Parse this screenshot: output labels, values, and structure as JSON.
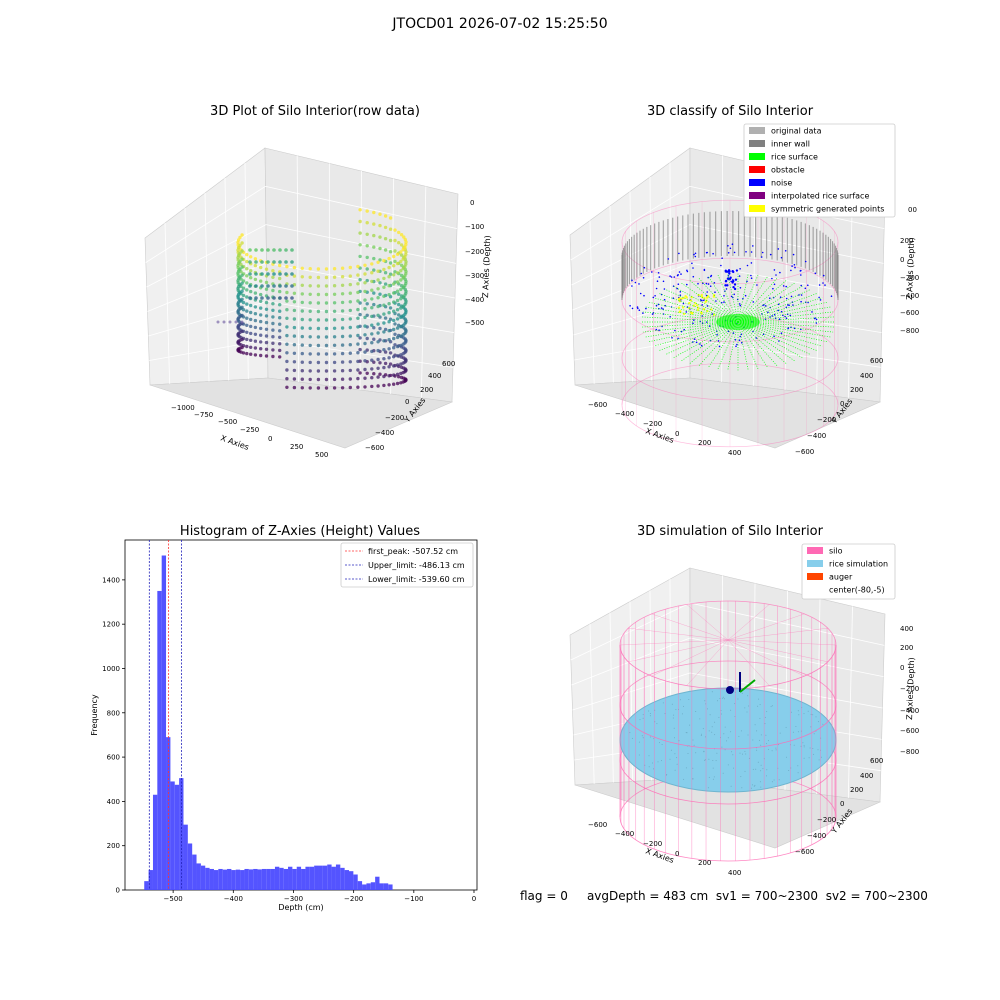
{
  "suptitle": "JTOCD01 2026-07-02 15:25:50",
  "colors": {
    "hist_bar": "#4b4bff",
    "peak_line": "#ff3333",
    "limit_line": "#2222bb",
    "pane": "#f0f0f0",
    "silo": "#ff69b4",
    "rice_sim": "#87ceeb",
    "auger": "#ff4500",
    "rice_surface": "#00ff00",
    "noise": "#0000ff",
    "inner_wall": "#808080",
    "original": "#b0b0b0",
    "interpolated": "#800080",
    "symmetric": "#ffff00"
  },
  "panel1": {
    "title": "3D Plot of Silo Interior(row data)",
    "x_label": "X Axies",
    "y_label": "Y Axies",
    "z_label": "Z Axies (Depth)",
    "x_ticks": [
      "−1000",
      "−750",
      "−500",
      "−250",
      "0",
      "250",
      "500"
    ],
    "y_ticks": [
      "−600",
      "−400",
      "−200",
      "0",
      "200",
      "400",
      "600"
    ],
    "z_ticks": [
      "0",
      "−100",
      "−200",
      "−300",
      "−400",
      "−500"
    ]
  },
  "panel2": {
    "title": "3D classify of Silo Interior",
    "x_label": "X Axies",
    "y_label": "Y Axies",
    "z_label": "Z Axies (Depth)",
    "x_ticks": [
      "−600",
      "−400",
      "−200",
      "0",
      "200",
      "400"
    ],
    "y_ticks": [
      "−600",
      "−400",
      "−200",
      "0",
      "200",
      "400",
      "600"
    ],
    "z_ticks": [
      "200",
      "0",
      "−200",
      "−400",
      "−600",
      "−800"
    ],
    "z_tick_partial": "00",
    "legend": [
      {
        "label": "original data",
        "color": "#b0b0b0"
      },
      {
        "label": "inner wall",
        "color": "#808080"
      },
      {
        "label": "rice surface",
        "color": "#00ff00"
      },
      {
        "label": "obstacle",
        "color": "#ff0000"
      },
      {
        "label": "noise",
        "color": "#0000ff"
      },
      {
        "label": "interpolated rice surface",
        "color": "#800080"
      },
      {
        "label": "symmetric generated points",
        "color": "#ffff00"
      }
    ]
  },
  "panel4": {
    "title": "3D simulation of Silo Interior",
    "x_label": "X Axies",
    "y_label": "Y Axies",
    "z_label": "Z Axies (Depth)",
    "x_ticks": [
      "−600",
      "−400",
      "−200",
      "0",
      "200",
      "400"
    ],
    "y_ticks": [
      "−600",
      "−400",
      "−200",
      "0",
      "200",
      "400",
      "600"
    ],
    "z_ticks": [
      "400",
      "200",
      "0",
      "−200",
      "−400",
      "−600",
      "−800"
    ],
    "legend": [
      {
        "label": "silo",
        "color": "#ff69b4"
      },
      {
        "label": "rice simulation",
        "color": "#87ceeb"
      },
      {
        "label": "auger",
        "color": "#ff4500"
      },
      {
        "label": "center(-80,-5)",
        "color": ""
      }
    ]
  },
  "status": {
    "flag": "flag = 0",
    "avg": "avgDepth = 483 cm",
    "sv1": "sv1 = 700~2300",
    "sv2": "sv2 = 700~2300"
  },
  "chart_data": [
    {
      "type": "scatter",
      "subtype": "3d",
      "title": "3D Plot of Silo Interior(row data)",
      "xlabel": "X Axies",
      "ylabel": "Y Axies",
      "zlabel": "Z Axies (Depth)",
      "xlim": [
        -1150,
        600
      ],
      "ylim": [
        -650,
        650
      ],
      "zlim": [
        -560,
        10
      ],
      "colormap": "viridis"
    },
    {
      "type": "scatter",
      "subtype": "3d",
      "title": "3D classify of Silo Interior",
      "xlabel": "X Axies",
      "ylabel": "Y Axies",
      "zlabel": "Z Axies (Depth)",
      "xlim": [
        -700,
        500
      ],
      "ylim": [
        -650,
        650
      ],
      "zlim": [
        -900,
        400
      ],
      "series": [
        {
          "name": "original data"
        },
        {
          "name": "inner wall"
        },
        {
          "name": "rice surface"
        },
        {
          "name": "obstacle"
        },
        {
          "name": "noise"
        },
        {
          "name": "interpolated rice surface"
        },
        {
          "name": "symmetric generated points"
        }
      ]
    },
    {
      "type": "bar",
      "subtype": "histogram",
      "title": "Histogram of Z-Axies (Height) Values",
      "xlabel": "Depth (cm)",
      "ylabel": "Frequency",
      "xlim": [
        -580,
        5
      ],
      "ylim": [
        0,
        1580
      ],
      "x_ticks": [
        -500,
        -400,
        -300,
        -200,
        -100,
        0
      ],
      "y_ticks": [
        0,
        200,
        400,
        600,
        800,
        1000,
        1200,
        1400
      ],
      "bin_start": -548,
      "bin_width": 7.24,
      "values": [
        40,
        90,
        430,
        1350,
        1510,
        690,
        490,
        475,
        505,
        295,
        210,
        160,
        120,
        110,
        100,
        95,
        90,
        95,
        92,
        95,
        90,
        92,
        90,
        95,
        93,
        95,
        93,
        95,
        95,
        95,
        105,
        100,
        95,
        105,
        95,
        105,
        95,
        105,
        105,
        110,
        110,
        110,
        115,
        105,
        115,
        100,
        90,
        85,
        70,
        40,
        25,
        30,
        35,
        60,
        30,
        30,
        25
      ],
      "lines": [
        {
          "name": "first_peak: -507.52 cm",
          "x": -507.52,
          "style": "red-dashed"
        },
        {
          "name": "Upper_limit: -486.13 cm",
          "x": -486.13,
          "style": "blue-dashed"
        },
        {
          "name": "Lower_limit: -539.60 cm",
          "x": -539.6,
          "style": "blue-dashed"
        }
      ],
      "legend_position": "upper right"
    },
    {
      "type": "scatter",
      "subtype": "3d",
      "title": "3D simulation of Silo Interior",
      "xlabel": "X Axies",
      "ylabel": "Y Axies",
      "zlabel": "Z Axies (Depth)",
      "xlim": [
        -700,
        500
      ],
      "ylim": [
        -650,
        650
      ],
      "zlim": [
        -900,
        450
      ],
      "series": [
        {
          "name": "silo"
        },
        {
          "name": "rice simulation"
        },
        {
          "name": "auger"
        },
        {
          "name": "center(-80,-5)"
        }
      ]
    }
  ]
}
